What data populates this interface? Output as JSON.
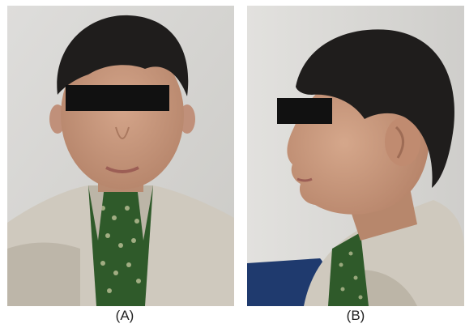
{
  "figure": {
    "panels": [
      {
        "label": "(A)",
        "view": "frontal",
        "redaction": "black-eye-bar"
      },
      {
        "label": "(B)",
        "view": "lateral-profile",
        "redaction": "black-eye-bar"
      }
    ]
  },
  "colors": {
    "background_wall": "#d9d9d5",
    "hair": "#1f1d1c",
    "skin": "#c99a80",
    "shirt": "#cfc9be",
    "inner_shirt": "#2f5a2a",
    "chair": "#1f3a6e",
    "redaction_bar": "#111111"
  }
}
